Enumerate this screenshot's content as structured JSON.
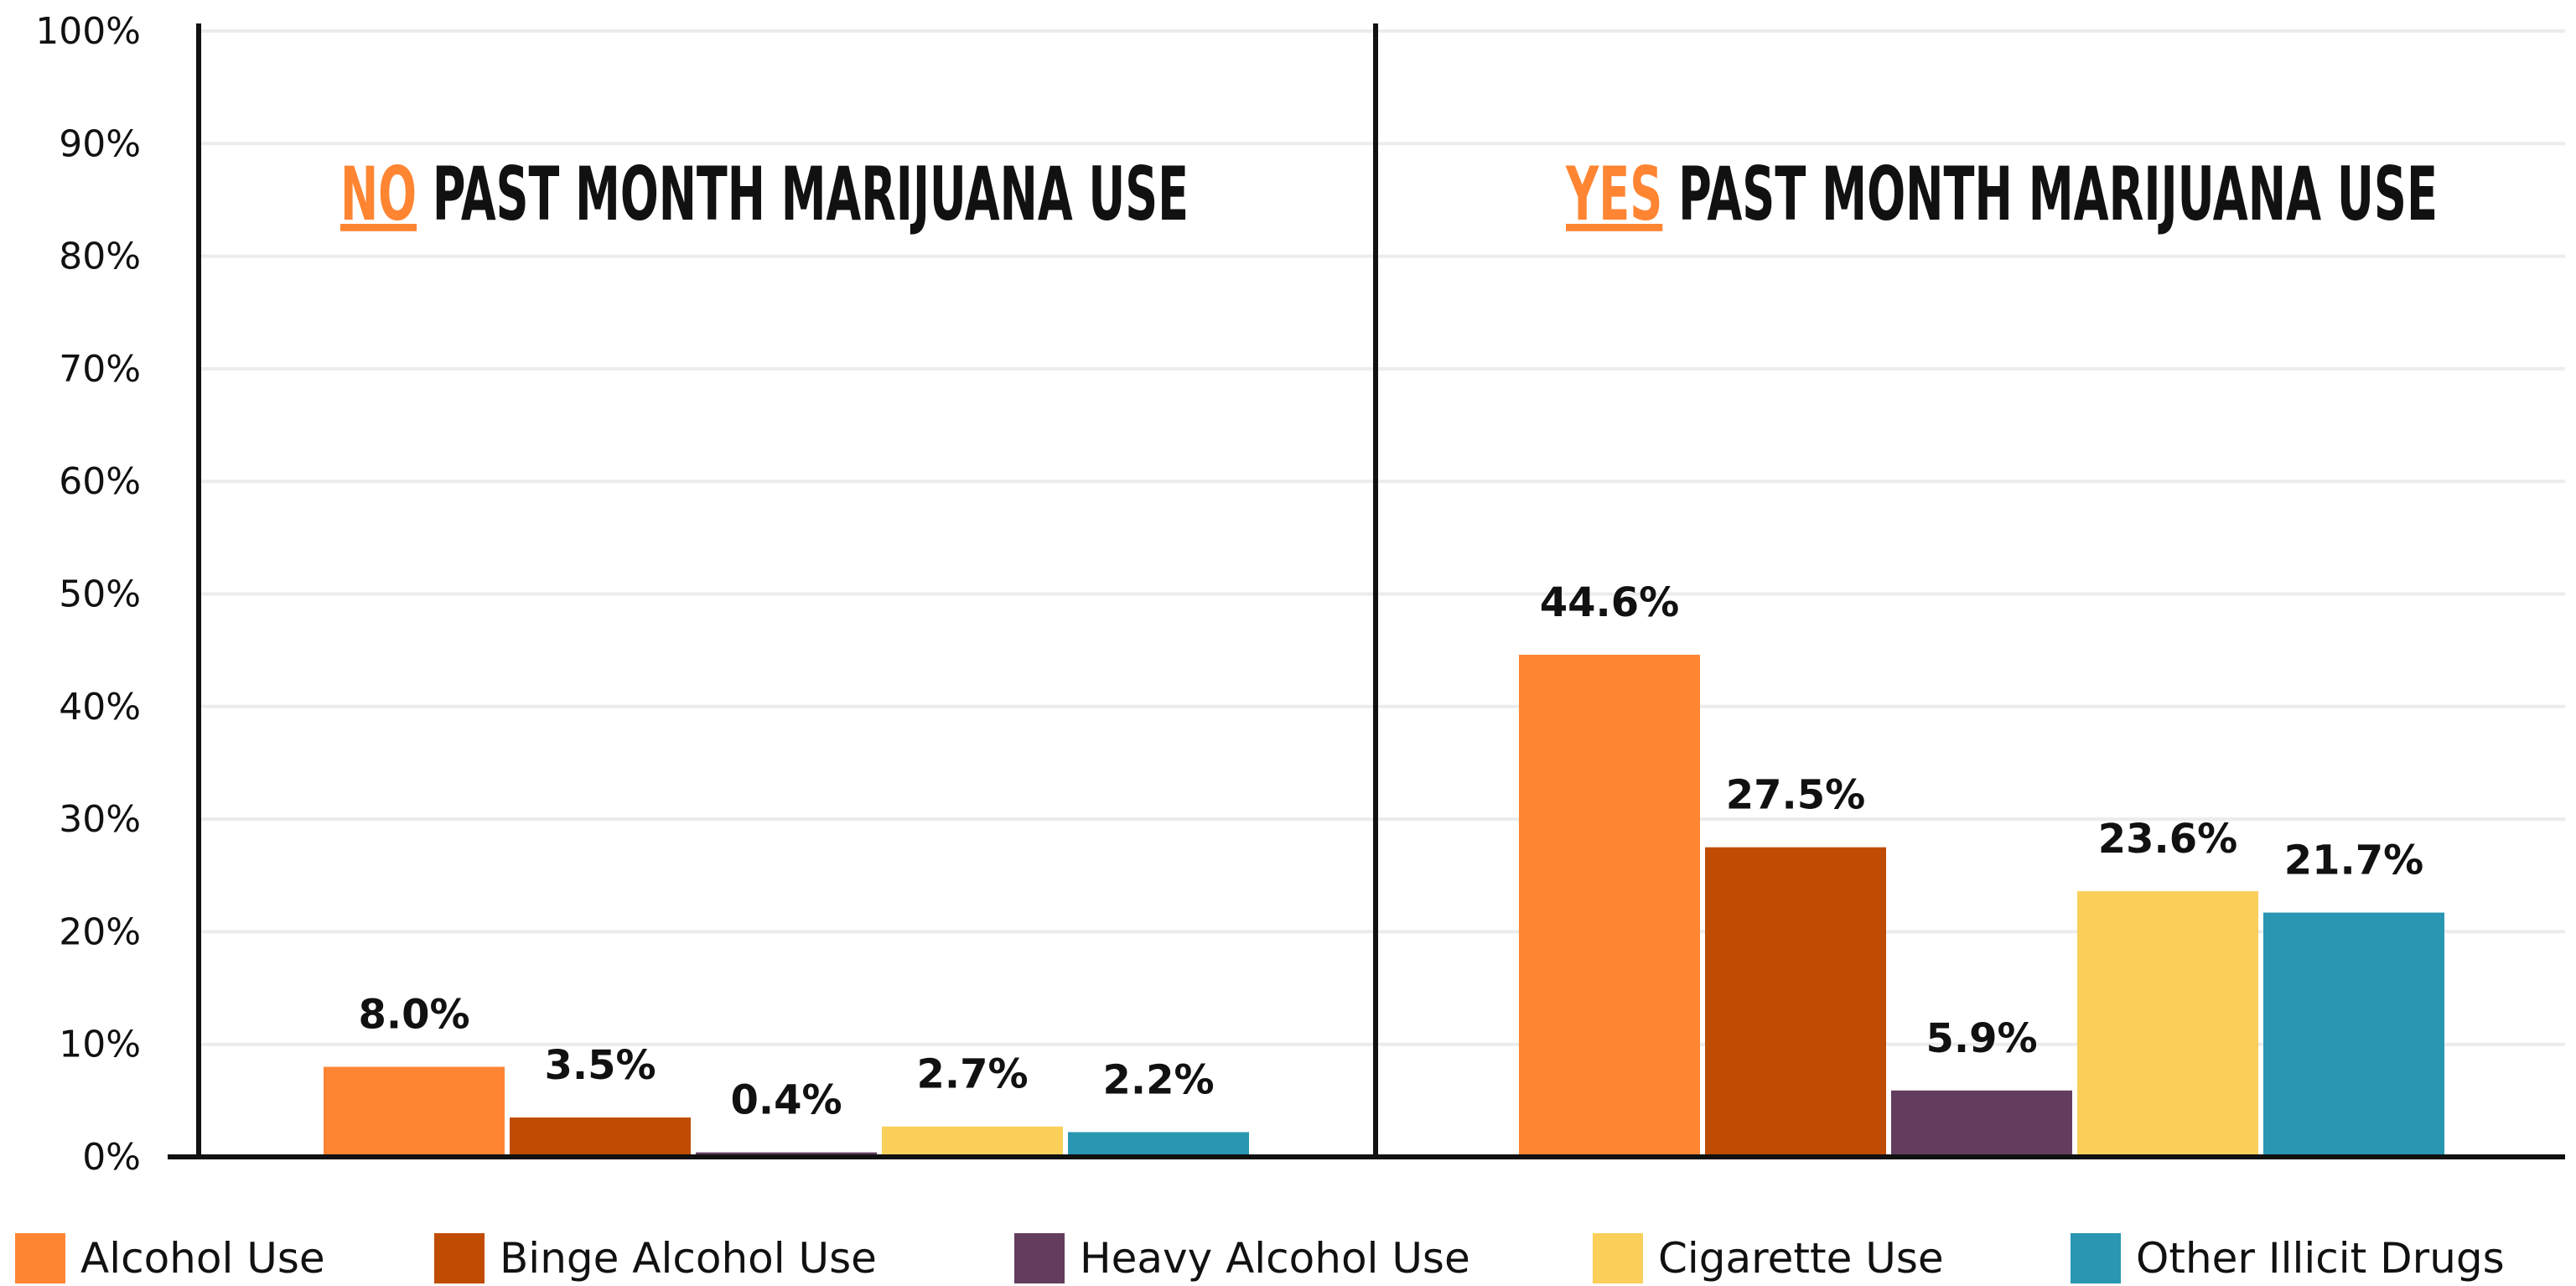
{
  "chart_data": {
    "type": "bar",
    "ylim": [
      0,
      100
    ],
    "yticks": [
      "0%",
      "10%",
      "20%",
      "30%",
      "40%",
      "50%",
      "60%",
      "70%",
      "80%",
      "90%",
      "100%"
    ],
    "grid": true,
    "legend_position": "bottom",
    "panels": [
      {
        "title_highlight": "NO",
        "title_rest": " PAST MONTH MARIJUANA USE",
        "values": [
          8.0,
          3.5,
          0.4,
          2.7,
          2.2
        ],
        "labels": [
          "8.0%",
          "3.5%",
          "0.4%",
          "2.7%",
          "2.2%"
        ]
      },
      {
        "title_highlight": "YES",
        "title_rest": " PAST MONTH MARIJUANA USE",
        "values": [
          44.6,
          27.5,
          5.9,
          23.6,
          21.7
        ],
        "labels": [
          "44.6%",
          "27.5%",
          "5.9%",
          "23.6%",
          "21.7%"
        ]
      }
    ],
    "series": [
      {
        "name": "Alcohol Use",
        "color": "#FF8533"
      },
      {
        "name": "Binge Alcohol Use",
        "color": "#BF4C00"
      },
      {
        "name": "Heavy Alcohol Use",
        "color": "#633D5E"
      },
      {
        "name": "Cigarette Use",
        "color": "#FACF5A"
      },
      {
        "name": "Other Illicit Drugs",
        "color": "#2A96B2"
      }
    ],
    "highlight_color": "#FF8533"
  }
}
